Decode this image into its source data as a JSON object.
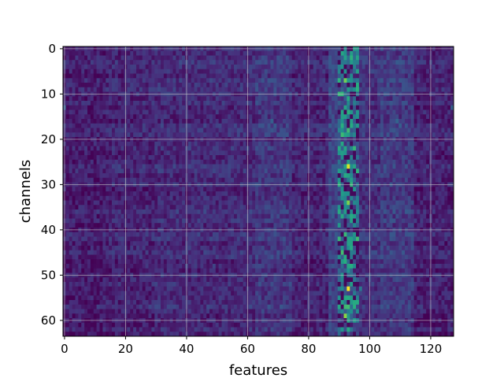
{
  "chart_data": {
    "type": "heatmap",
    "title": "",
    "xlabel": "features",
    "ylabel": "channels",
    "n_cols": 128,
    "n_rows": 64,
    "xlim": [
      0,
      127
    ],
    "ylim": [
      0,
      63
    ],
    "y_inverted": true,
    "x_ticks": [
      0,
      20,
      40,
      60,
      80,
      100,
      120
    ],
    "y_ticks": [
      0,
      10,
      20,
      30,
      40,
      50,
      60
    ],
    "grid": true,
    "colormap": "viridis",
    "colormap_stops": [
      "#440154",
      "#472d7b",
      "#3b528b",
      "#2c728e",
      "#21918c",
      "#28ae80",
      "#5ec962",
      "#addc30",
      "#fde725"
    ],
    "value_range": [
      0,
      1
    ],
    "background_level": 0.07,
    "column_profile": [
      {
        "from": 0,
        "to": 13,
        "level": 0.08
      },
      {
        "from": 14,
        "to": 29,
        "level": 0.1
      },
      {
        "from": 30,
        "to": 62,
        "level": 0.12
      },
      {
        "from": 63,
        "to": 74,
        "level": 0.16
      },
      {
        "from": 75,
        "to": 86,
        "level": 0.1
      },
      {
        "from": 87,
        "to": 89,
        "level": 0.2
      },
      {
        "from": 90,
        "to": 96,
        "level": 0.38
      },
      {
        "from": 97,
        "to": 103,
        "level": 0.14
      },
      {
        "from": 104,
        "to": 114,
        "level": 0.17
      },
      {
        "from": 115,
        "to": 127,
        "level": 0.09
      }
    ],
    "hotspots": [
      {
        "x": 92,
        "y": 7,
        "v": 0.78
      },
      {
        "x": 93,
        "y": 11,
        "v": 0.6
      },
      {
        "x": 91,
        "y": 16,
        "v": 0.5
      },
      {
        "x": 93,
        "y": 19,
        "v": 0.55
      },
      {
        "x": 92,
        "y": 22,
        "v": 0.58
      },
      {
        "x": 93,
        "y": 26,
        "v": 0.95
      },
      {
        "x": 94,
        "y": 29,
        "v": 0.55
      },
      {
        "x": 92,
        "y": 32,
        "v": 0.5
      },
      {
        "x": 93,
        "y": 34,
        "v": 0.8
      },
      {
        "x": 91,
        "y": 37,
        "v": 0.6
      },
      {
        "x": 95,
        "y": 39,
        "v": 0.45
      },
      {
        "x": 93,
        "y": 44,
        "v": 0.5
      },
      {
        "x": 92,
        "y": 47,
        "v": 0.62
      },
      {
        "x": 93,
        "y": 53,
        "v": 1.0
      },
      {
        "x": 94,
        "y": 55,
        "v": 0.55
      },
      {
        "x": 92,
        "y": 59,
        "v": 0.82
      },
      {
        "x": 93,
        "y": 62,
        "v": 0.6
      },
      {
        "x": 97,
        "y": 53,
        "v": 0.4
      },
      {
        "x": 109,
        "y": 16,
        "v": 0.32
      },
      {
        "x": 110,
        "y": 17,
        "v": 0.3
      },
      {
        "x": 68,
        "y": 16,
        "v": 0.3
      },
      {
        "x": 69,
        "y": 17,
        "v": 0.28
      },
      {
        "x": 70,
        "y": 2,
        "v": 0.25
      },
      {
        "x": 0,
        "y": 13,
        "v": 0.28
      },
      {
        "x": 127,
        "y": 13,
        "v": 0.3
      },
      {
        "x": 107,
        "y": 38,
        "v": 0.26
      }
    ]
  }
}
